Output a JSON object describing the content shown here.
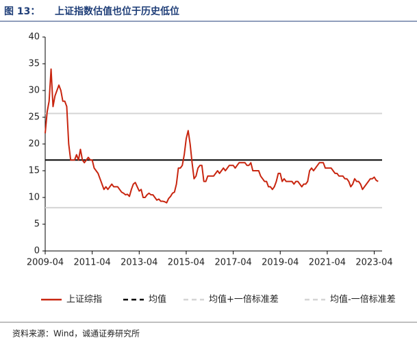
{
  "chart_data": {
    "type": "line",
    "figure_label": "图 13：",
    "title": "上证指数估值也位于历史低位",
    "source": "资料来源：Wind，诚通证券研究所",
    "x": [
      "2009-04",
      "2009-05",
      "2009-06",
      "2009-07",
      "2009-08",
      "2009-09",
      "2009-10",
      "2009-11",
      "2009-12",
      "2010-01",
      "2010-02",
      "2010-03",
      "2010-04",
      "2010-05",
      "2010-06",
      "2010-07",
      "2010-08",
      "2010-09",
      "2010-10",
      "2010-11",
      "2010-12",
      "2011-01",
      "2011-02",
      "2011-03",
      "2011-04",
      "2011-05",
      "2011-06",
      "2011-07",
      "2011-08",
      "2011-09",
      "2011-10",
      "2011-11",
      "2011-12",
      "2012-01",
      "2012-02",
      "2012-03",
      "2012-04",
      "2012-05",
      "2012-06",
      "2012-07",
      "2012-08",
      "2012-09",
      "2012-10",
      "2012-11",
      "2012-12",
      "2013-01",
      "2013-02",
      "2013-03",
      "2013-04",
      "2013-05",
      "2013-06",
      "2013-07",
      "2013-08",
      "2013-09",
      "2013-10",
      "2013-11",
      "2013-12",
      "2014-01",
      "2014-02",
      "2014-03",
      "2014-04",
      "2014-05",
      "2014-06",
      "2014-07",
      "2014-08",
      "2014-09",
      "2014-10",
      "2014-11",
      "2014-12",
      "2015-01",
      "2015-02",
      "2015-03",
      "2015-04",
      "2015-05",
      "2015-06",
      "2015-07",
      "2015-08",
      "2015-09",
      "2015-10",
      "2015-11",
      "2015-12",
      "2016-01",
      "2016-02",
      "2016-03",
      "2016-04",
      "2016-05",
      "2016-06",
      "2016-07",
      "2016-08",
      "2016-09",
      "2016-10",
      "2016-11",
      "2016-12",
      "2017-01",
      "2017-02",
      "2017-03",
      "2017-04",
      "2017-05",
      "2017-06",
      "2017-07",
      "2017-08",
      "2017-09",
      "2017-10",
      "2017-11",
      "2017-12",
      "2018-01",
      "2018-02",
      "2018-03",
      "2018-04",
      "2018-05",
      "2018-06",
      "2018-07",
      "2018-08",
      "2018-09",
      "2018-10",
      "2018-11",
      "2018-12",
      "2019-01",
      "2019-02",
      "2019-03",
      "2019-04",
      "2019-05",
      "2019-06",
      "2019-07",
      "2019-08",
      "2019-09",
      "2019-10",
      "2019-11",
      "2019-12",
      "2020-01",
      "2020-02",
      "2020-03",
      "2020-04",
      "2020-05",
      "2020-06",
      "2020-07",
      "2020-08",
      "2020-09",
      "2020-10",
      "2020-11",
      "2020-12",
      "2021-01",
      "2021-02",
      "2021-03",
      "2021-04",
      "2021-05",
      "2021-06",
      "2021-07",
      "2021-08",
      "2021-09",
      "2021-10",
      "2021-11",
      "2021-12",
      "2022-01",
      "2022-02",
      "2022-03",
      "2022-04",
      "2022-05",
      "2022-06",
      "2022-07",
      "2022-08",
      "2022-09",
      "2022-10",
      "2022-11",
      "2022-12",
      "2023-01",
      "2023-02",
      "2023-03",
      "2023-04",
      "2023-05",
      "2023-06"
    ],
    "series": [
      {
        "name": "上证综指",
        "color": "#c8250f",
        "values": [
          22,
          26,
          28,
          34,
          27,
          29,
          30,
          31,
          30,
          28,
          28,
          27,
          20,
          17,
          17,
          17,
          18,
          17,
          19,
          17,
          16.5,
          17,
          17.5,
          17,
          17,
          15.5,
          15,
          14.5,
          13.5,
          12.5,
          11.5,
          12,
          11.5,
          12,
          12.5,
          12,
          12,
          12,
          11.5,
          11,
          10.8,
          10.5,
          10.6,
          10.2,
          11.5,
          12.5,
          12.8,
          12,
          11.2,
          11.5,
          10,
          10,
          10.5,
          10.8,
          10.5,
          10.5,
          10,
          9.5,
          9.7,
          9.3,
          9.3,
          9.2,
          9,
          9.8,
          10.2,
          10.8,
          11,
          12.5,
          15.5,
          15.5,
          16,
          18,
          21,
          22.5,
          20,
          16.5,
          13.5,
          14,
          15.5,
          16,
          16,
          13,
          13,
          14,
          14,
          14,
          14,
          14.5,
          15,
          14.5,
          15,
          15.5,
          15,
          15.5,
          16,
          16,
          16,
          15.5,
          16,
          16.5,
          16.5,
          16.5,
          16.5,
          16,
          16,
          16.5,
          15,
          15,
          15,
          15,
          14,
          13.5,
          13,
          13,
          12,
          12,
          11.5,
          12,
          13,
          14.5,
          14.5,
          13,
          13.5,
          13,
          13,
          13,
          13,
          12.5,
          13,
          13,
          12.5,
          12,
          12.5,
          12.5,
          13,
          15,
          15.5,
          15,
          15.5,
          16,
          16.5,
          16.5,
          16.5,
          15.5,
          15.5,
          15.5,
          15.5,
          15,
          14.5,
          14.5,
          14,
          14,
          14,
          13.5,
          13.5,
          13,
          12,
          12.5,
          13.5,
          13,
          13,
          12.5,
          11.5,
          12,
          12.5,
          13,
          13.5,
          13.5,
          13.8,
          13.2,
          13
        ]
      }
    ],
    "reference_lines": [
      {
        "name": "均值",
        "value": 17,
        "color": "#000000",
        "style": "dashed"
      },
      {
        "name": "均值+一倍标准差",
        "value": 25.7,
        "color": "#d4d4d4",
        "style": "dashed"
      },
      {
        "name": "均值-一倍标准差",
        "value": 8.1,
        "color": "#d4d4d4",
        "style": "dashed"
      }
    ],
    "xlim": [
      "2009-04",
      "2023-08"
    ],
    "xticks": [
      "2009-04",
      "2011-04",
      "2013-04",
      "2015-04",
      "2017-04",
      "2019-04",
      "2021-04",
      "2023-04"
    ],
    "ylim": [
      0,
      40
    ],
    "yticks": [
      0,
      5,
      10,
      15,
      20,
      25,
      30,
      35,
      40
    ],
    "grid": false,
    "legend": "bottom"
  }
}
